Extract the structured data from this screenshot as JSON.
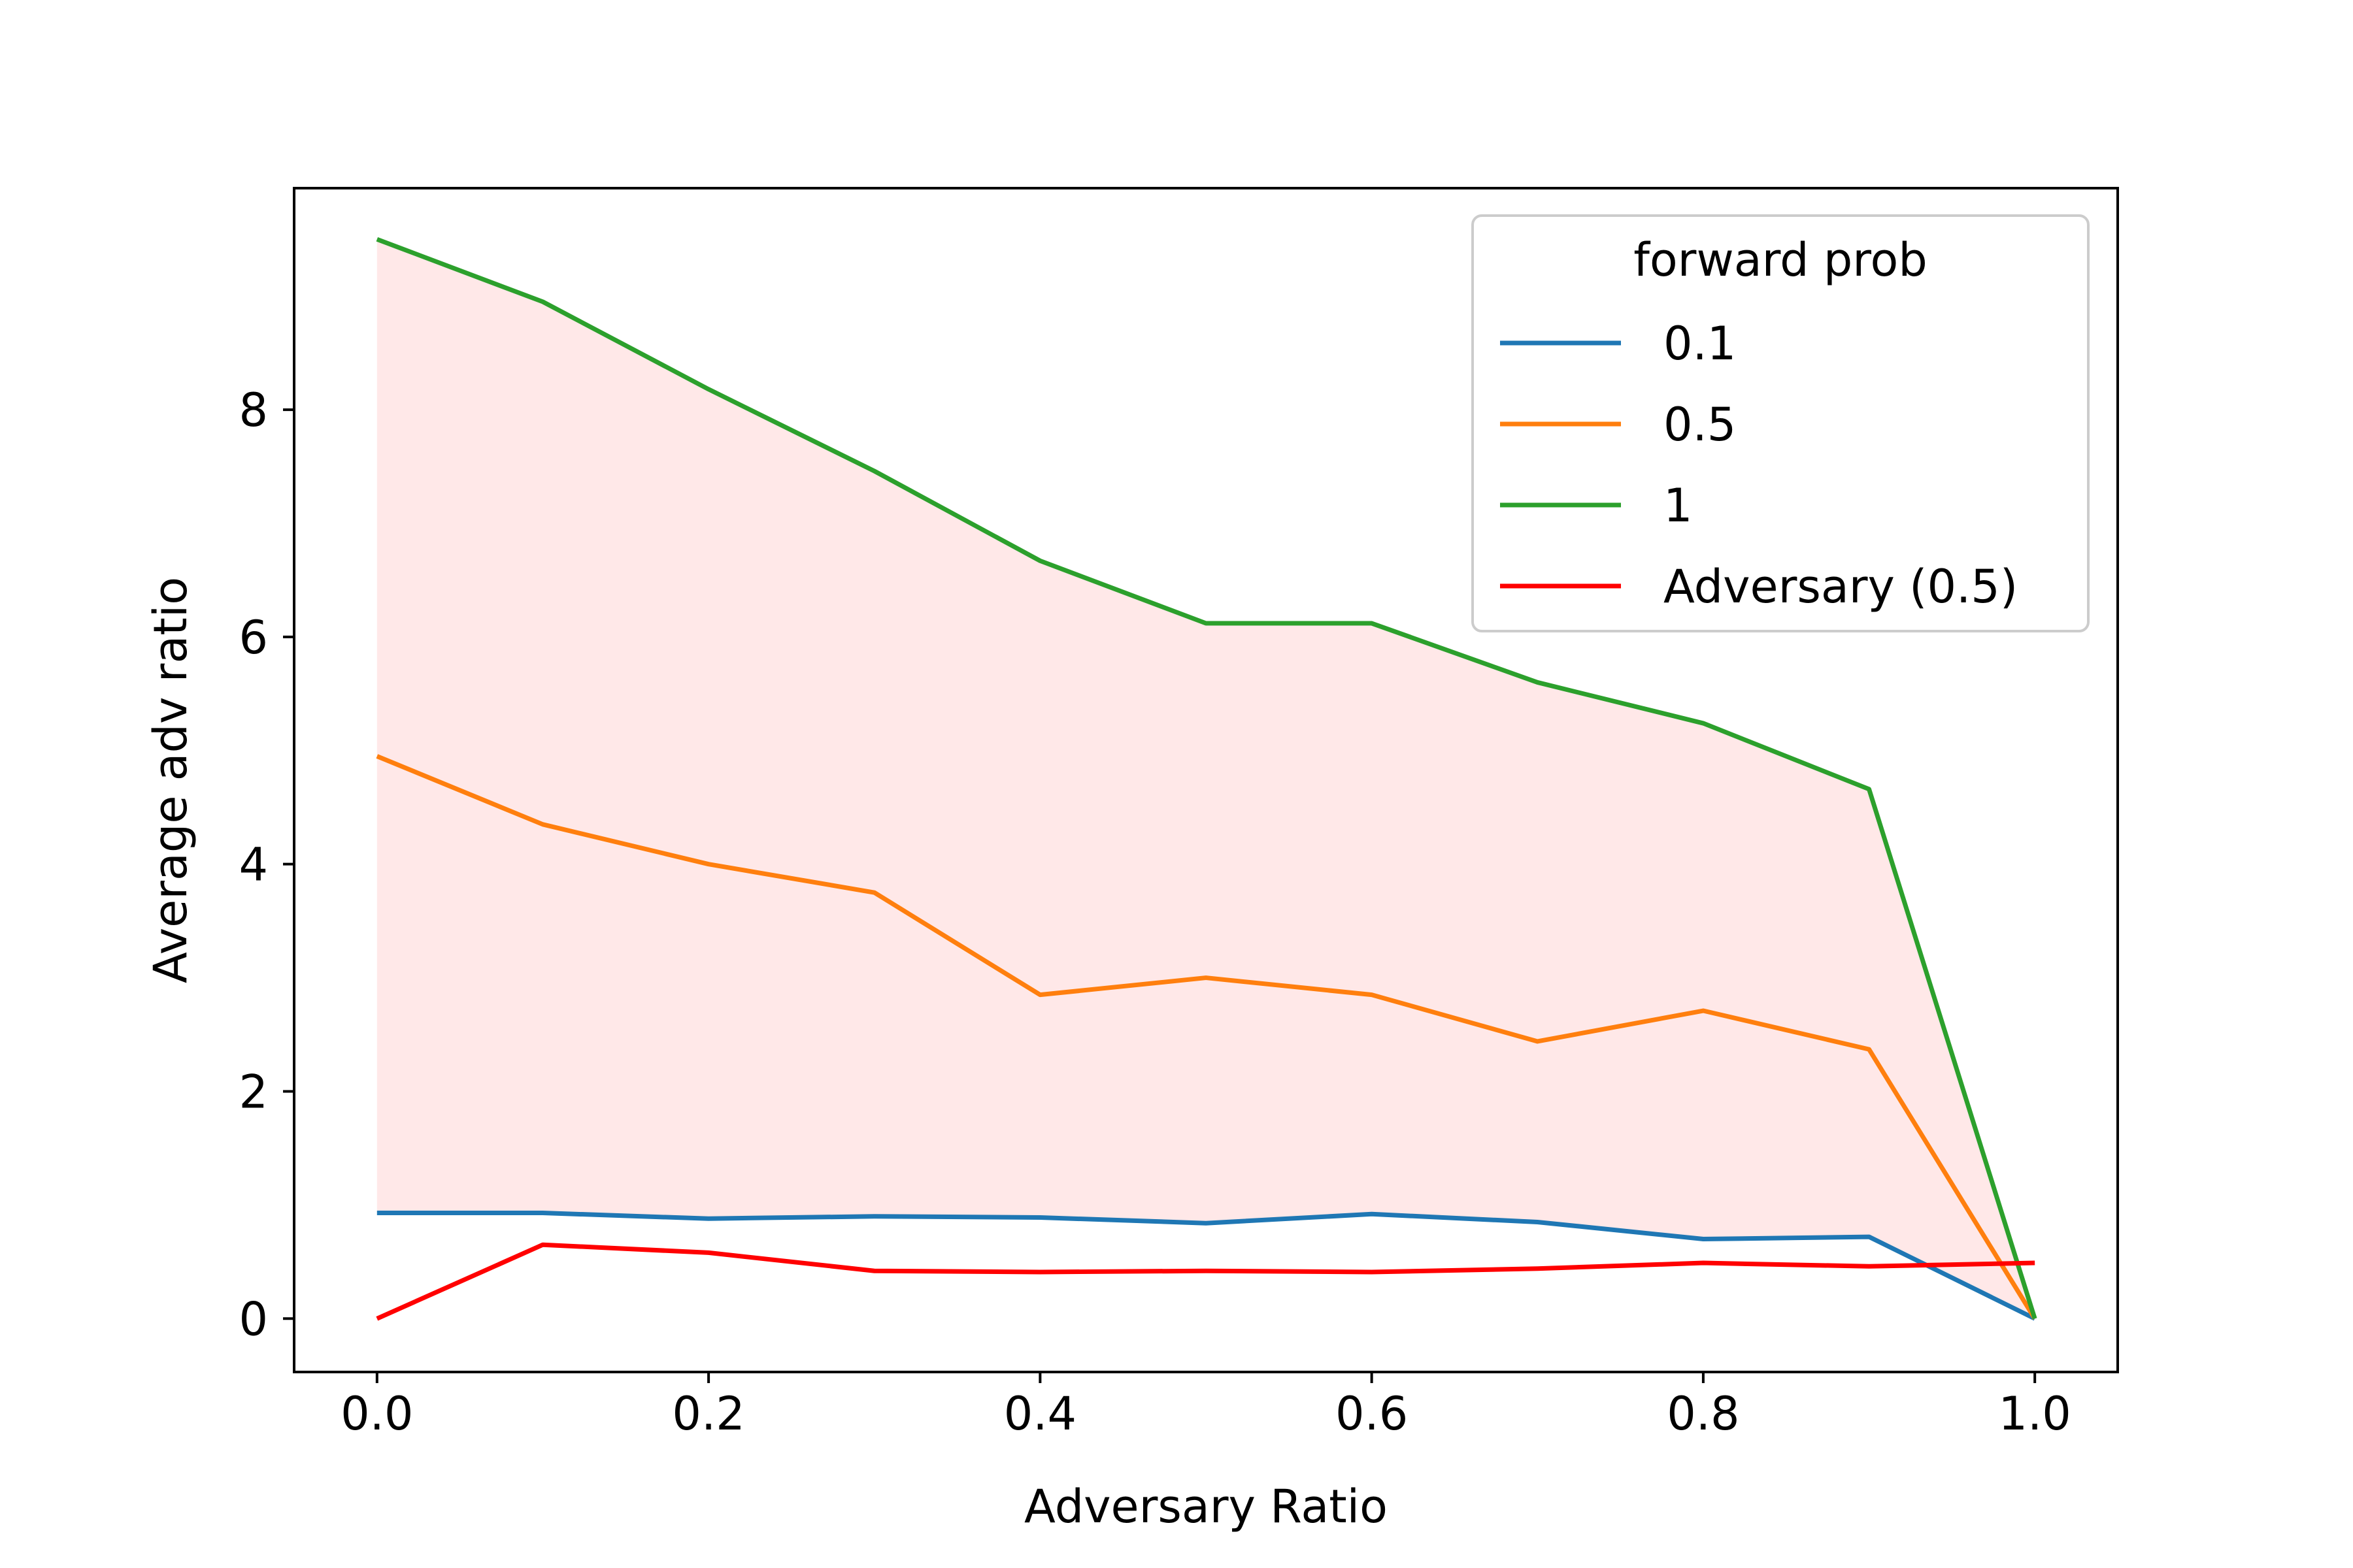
{
  "chart_data": {
    "type": "line",
    "xlabel": "Adversary Ratio",
    "ylabel": "Average adv ratio",
    "xlim": [
      -0.05,
      1.05
    ],
    "ylim": [
      -0.47,
      9.95
    ],
    "x": [
      0.0,
      0.1,
      0.2,
      0.3,
      0.4,
      0.5,
      0.6,
      0.7,
      0.8,
      0.9,
      1.0
    ],
    "x_ticks": [
      0.0,
      0.2,
      0.4,
      0.6,
      0.8,
      1.0
    ],
    "x_tick_labels": [
      "0.0",
      "0.2",
      "0.4",
      "0.6",
      "0.8",
      "1.0"
    ],
    "y_ticks": [
      0,
      2,
      4,
      6,
      8
    ],
    "y_tick_labels": [
      "0",
      "2",
      "4",
      "6",
      "8"
    ],
    "grid": false,
    "legend": {
      "title": "forward prob",
      "placement": "top-right"
    },
    "series": [
      {
        "name": "0.1",
        "color": "#1f77b4",
        "values": [
          0.93,
          0.93,
          0.88,
          0.9,
          0.89,
          0.84,
          0.92,
          0.85,
          0.7,
          0.72,
          0.0
        ]
      },
      {
        "name": "0.5",
        "color": "#ff7f0e",
        "values": [
          4.95,
          4.35,
          4.0,
          3.75,
          2.85,
          3.0,
          2.85,
          2.44,
          2.71,
          2.37,
          0.0
        ]
      },
      {
        "name": "1",
        "color": "#2ca02c",
        "values": [
          9.5,
          8.95,
          8.18,
          7.46,
          6.67,
          6.12,
          6.12,
          5.6,
          5.24,
          4.66,
          0.0
        ]
      },
      {
        "name": "Adversary (0.5)",
        "color": "#ff0000",
        "values": [
          0.0,
          0.65,
          0.58,
          0.42,
          0.41,
          0.42,
          0.41,
          0.44,
          0.49,
          0.46,
          0.49
        ]
      }
    ],
    "fill_between": {
      "lower_series": "0.1",
      "upper_series": "1",
      "color": "#ffe8e8"
    }
  }
}
